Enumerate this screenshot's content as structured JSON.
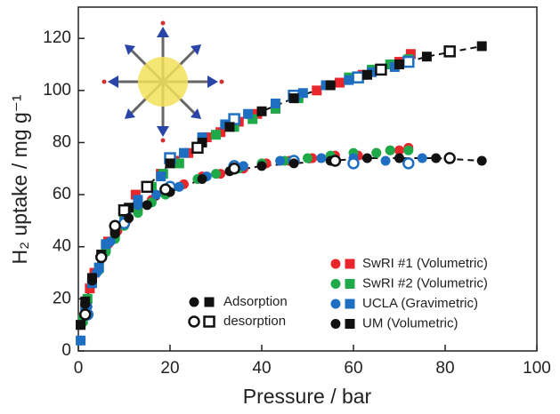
{
  "chart_data": {
    "type": "scatter",
    "x_label": "Pressure / bar",
    "y_label": "H₂ uptake / mg g⁻¹",
    "xlim": [
      0,
      100
    ],
    "xticks": [
      0,
      20,
      40,
      60,
      80,
      100
    ],
    "ylim": [
      0,
      132
    ],
    "yticks": [
      0,
      20,
      40,
      60,
      80,
      100,
      120
    ],
    "legend": [
      {
        "label": "SwRI #1 (Volumetric)",
        "color": "#e8262b"
      },
      {
        "label": "SwRI #2 (Volumetric)",
        "color": "#1faa4a"
      },
      {
        "label": "UCLA (Gravimetric)",
        "color": "#1e6fc1"
      },
      {
        "label": "UM (Volumetric)",
        "color": "#111111"
      }
    ],
    "marker_legend": [
      {
        "label": "Adsorption",
        "fill": "filled"
      },
      {
        "label": "desorption",
        "fill": "open"
      }
    ],
    "series": [
      {
        "color": "#e8262b",
        "marker": "square",
        "fill": "filled",
        "x": [
          0.5,
          1.5,
          2.5,
          3.5,
          5,
          6.5,
          8,
          10,
          12.5,
          15,
          18,
          21,
          24,
          28,
          31,
          35,
          39,
          43,
          48,
          52,
          57,
          62,
          66,
          70,
          72.5
        ],
        "values": [
          10,
          17,
          24,
          30,
          37,
          42,
          46,
          52,
          60,
          63,
          68,
          73,
          76,
          82,
          84,
          88,
          91,
          93,
          98,
          100,
          103,
          106,
          108,
          111,
          114
        ]
      },
      {
        "color": "#e8262b",
        "marker": "circle",
        "fill": "filled",
        "x": [
          0.5,
          1.5,
          2.5,
          3.5,
          5,
          6.5,
          8.5,
          10.5,
          13,
          16,
          19,
          23,
          27,
          31,
          36,
          41,
          46,
          51,
          56,
          61,
          65,
          68,
          70,
          72
        ],
        "values": [
          10,
          17,
          24,
          30,
          36,
          41,
          46,
          50,
          54,
          58,
          61,
          64,
          67,
          68,
          70,
          72,
          73,
          74,
          75,
          75,
          76,
          77,
          77,
          78
        ]
      },
      {
        "color": "#1faa4a",
        "marker": "square",
        "fill": "filled",
        "x": [
          1,
          2,
          3,
          4.5,
          6,
          8,
          10,
          13,
          16,
          18.5,
          22,
          26,
          30,
          34,
          38,
          43,
          48,
          54,
          59,
          64,
          68,
          72
        ],
        "values": [
          12,
          20,
          27,
          32,
          40,
          45,
          51,
          56,
          63,
          68,
          72,
          78,
          83,
          86,
          89,
          93,
          97,
          102,
          105,
          108,
          110,
          112
        ]
      },
      {
        "color": "#1faa4a",
        "marker": "circle",
        "fill": "filled",
        "x": [
          1,
          2,
          3,
          4.5,
          6,
          8,
          10,
          13,
          16,
          19,
          22,
          26,
          30,
          35,
          40,
          45,
          50,
          55,
          60,
          65,
          68,
          72
        ],
        "values": [
          11,
          19,
          26,
          31,
          38,
          43,
          48,
          53,
          57,
          60,
          63,
          66,
          68,
          70,
          72,
          73,
          74,
          75,
          76,
          76,
          77,
          77
        ]
      },
      {
        "color": "#1e6fc1",
        "marker": "square",
        "fill": "filled",
        "x": [
          0.5,
          1.5,
          3,
          4.5,
          6,
          8,
          10.5,
          13,
          18,
          23,
          27,
          32,
          37,
          43,
          49,
          54,
          59,
          64,
          69
        ],
        "values": [
          4,
          16,
          26,
          32,
          41,
          47,
          52,
          58,
          67,
          76,
          82,
          87,
          91,
          95,
          99,
          102,
          104,
          107,
          109
        ]
      },
      {
        "color": "#1e6fc1",
        "marker": "square",
        "fill": "open",
        "x": [
          20,
          34,
          47,
          61,
          72
        ],
        "values": [
          74,
          89,
          98,
          105,
          111
        ]
      },
      {
        "color": "#1e6fc1",
        "marker": "circle",
        "fill": "filled",
        "x": [
          0.5,
          2,
          4,
          7,
          10,
          13,
          17,
          22,
          28,
          36,
          44,
          53,
          60,
          67,
          75
        ],
        "values": [
          4,
          17,
          30,
          42,
          50,
          56,
          60,
          63,
          67,
          71,
          73,
          74,
          74,
          73,
          74
        ]
      },
      {
        "color": "#1e6fc1",
        "marker": "circle",
        "fill": "open",
        "x": [
          2,
          10,
          20,
          34,
          47,
          60,
          72
        ],
        "values": [
          14,
          49,
          63,
          71,
          73,
          72,
          72
        ]
      },
      {
        "color": "#111111",
        "marker": "square",
        "fill": "filled",
        "line": "dashed",
        "x": [
          0.5,
          1.5,
          3,
          5,
          8,
          11,
          15,
          20,
          27,
          33,
          40,
          47,
          55,
          63,
          70,
          76,
          88
        ],
        "values": [
          10,
          19,
          28,
          37,
          47,
          55,
          63,
          72,
          80,
          86,
          92,
          97,
          102,
          106,
          110,
          113,
          117
        ]
      },
      {
        "color": "#111111",
        "marker": "square",
        "fill": "open",
        "x": [
          10,
          15,
          26,
          66,
          81
        ],
        "values": [
          54,
          63,
          78,
          108,
          115
        ]
      },
      {
        "color": "#111111",
        "marker": "circle",
        "fill": "filled",
        "line": "dashed",
        "x": [
          0.5,
          1.5,
          3,
          5,
          8,
          11,
          15,
          20,
          27,
          33,
          40,
          47,
          55,
          63,
          70,
          78,
          88
        ],
        "values": [
          10,
          18,
          27,
          36,
          45,
          51,
          56,
          61,
          66,
          69,
          71,
          72,
          73,
          74,
          74,
          74,
          73
        ]
      },
      {
        "color": "#111111",
        "marker": "circle",
        "fill": "open",
        "x": [
          1.5,
          5,
          8,
          19,
          34,
          56,
          81
        ],
        "values": [
          14,
          36,
          48,
          62,
          70,
          73,
          74
        ]
      }
    ]
  }
}
